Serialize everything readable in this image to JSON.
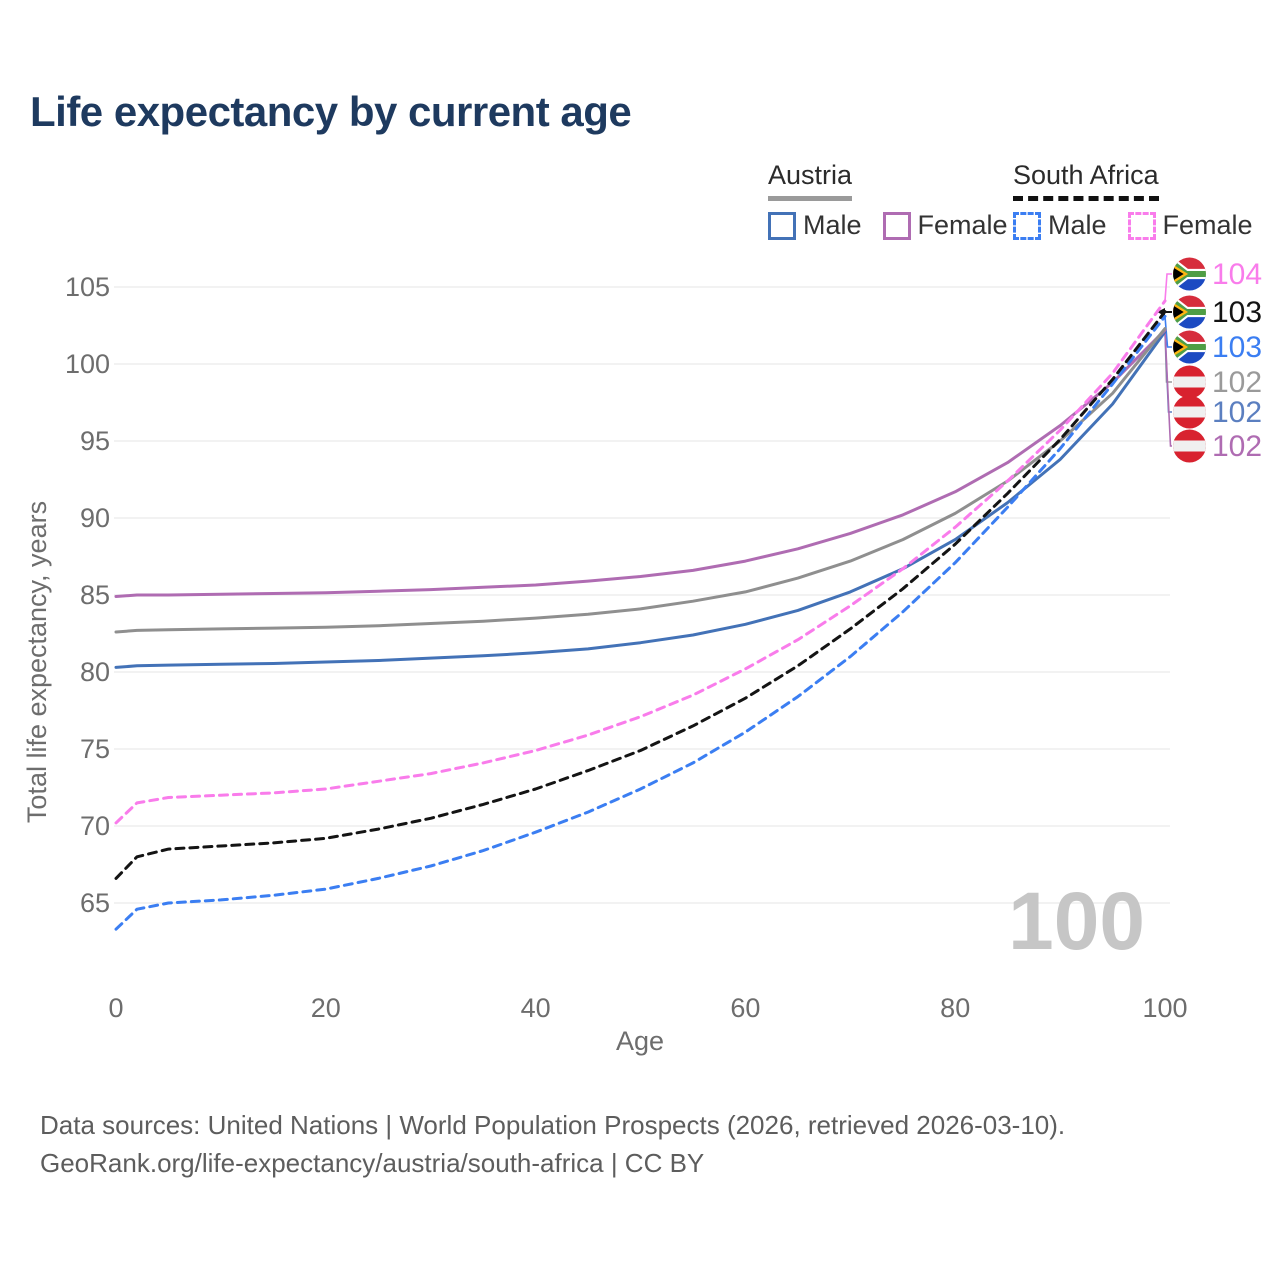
{
  "title": "Life expectancy by current age",
  "legend": {
    "groups": [
      {
        "country": "Austria",
        "line_style": "solid",
        "underline_color": "#9a9a9a",
        "items": [
          {
            "label": "Male",
            "color": "#4372b7",
            "dashed": false
          },
          {
            "label": "Female",
            "color": "#af6cb2",
            "dashed": false
          }
        ]
      },
      {
        "country": "South Africa",
        "line_style": "dashed",
        "underline_color": "#111111",
        "items": [
          {
            "label": "Male",
            "color": "#3b7ef2",
            "dashed": true
          },
          {
            "label": "Female",
            "color": "#f97ceb",
            "dashed": true
          }
        ]
      }
    ]
  },
  "chart_data": {
    "type": "line",
    "title": "Life expectancy by current age",
    "xlabel": "Age",
    "ylabel": "Total life expectancy, years",
    "x_ticks": [
      0,
      20,
      40,
      60,
      80,
      100
    ],
    "y_ticks": [
      65,
      70,
      75,
      80,
      85,
      90,
      95,
      100,
      105
    ],
    "xlim": [
      0,
      100
    ],
    "ylim": [
      63,
      106
    ],
    "grid": "horizontal",
    "legend_position": "top-right",
    "watermark": "100",
    "x": [
      0,
      2,
      5,
      10,
      15,
      20,
      25,
      30,
      35,
      40,
      45,
      50,
      55,
      60,
      65,
      70,
      75,
      80,
      85,
      90,
      95,
      100
    ],
    "series": [
      {
        "name": "Austria Male",
        "country": "Austria",
        "sex": "Male",
        "color": "#4372b7",
        "dashed": false,
        "values": [
          80.3,
          80.4,
          80.45,
          80.5,
          80.55,
          80.65,
          80.75,
          80.9,
          81.05,
          81.25,
          81.5,
          81.9,
          82.4,
          83.1,
          84.0,
          85.2,
          86.7,
          88.6,
          91.0,
          93.8,
          97.4,
          102.1
        ]
      },
      {
        "name": "Austria Female",
        "country": "Austria",
        "sex": "Female",
        "color": "#af6cb2",
        "dashed": false,
        "values": [
          84.9,
          85.0,
          85.0,
          85.05,
          85.1,
          85.15,
          85.25,
          85.35,
          85.5,
          85.65,
          85.9,
          86.2,
          86.6,
          87.2,
          88.0,
          89.0,
          90.2,
          91.7,
          93.6,
          96.0,
          98.8,
          102.2
        ]
      },
      {
        "name": "Austria Both sexes",
        "country": "Austria",
        "sex": "Both",
        "color": "#8f8f8f",
        "dashed": false,
        "values": [
          82.6,
          82.7,
          82.75,
          82.8,
          82.85,
          82.9,
          83.0,
          83.15,
          83.3,
          83.5,
          83.75,
          84.1,
          84.6,
          85.2,
          86.1,
          87.2,
          88.6,
          90.3,
          92.4,
          95.0,
          98.1,
          102.3
        ]
      },
      {
        "name": "South Africa Male",
        "country": "South Africa",
        "sex": "Male",
        "color": "#3b7ef2",
        "dashed": true,
        "values": [
          63.3,
          64.6,
          65.0,
          65.2,
          65.5,
          65.9,
          66.6,
          67.4,
          68.4,
          69.6,
          70.9,
          72.4,
          74.1,
          76.1,
          78.4,
          81.0,
          83.9,
          87.1,
          90.7,
          94.5,
          98.7,
          103.1
        ]
      },
      {
        "name": "South Africa Female",
        "country": "South Africa",
        "sex": "Female",
        "color": "#f97ceb",
        "dashed": true,
        "values": [
          70.2,
          71.5,
          71.85,
          72.0,
          72.15,
          72.4,
          72.9,
          73.4,
          74.1,
          74.9,
          75.9,
          77.1,
          78.5,
          80.2,
          82.1,
          84.3,
          86.7,
          89.4,
          92.4,
          95.7,
          99.4,
          104.1
        ]
      },
      {
        "name": "South Africa Both sexes",
        "country": "South Africa",
        "sex": "Both",
        "color": "#141414",
        "dashed": true,
        "values": [
          66.6,
          68.0,
          68.5,
          68.7,
          68.9,
          69.2,
          69.8,
          70.5,
          71.4,
          72.4,
          73.6,
          74.9,
          76.5,
          78.3,
          80.4,
          82.8,
          85.4,
          88.3,
          91.6,
          95.1,
          99.0,
          103.4
        ]
      }
    ],
    "end_labels": [
      {
        "value": "104",
        "series": "South Africa Female",
        "flag": "south-africa",
        "color": "#f97ceb"
      },
      {
        "value": "103",
        "series": "South Africa Both sexes",
        "flag": "south-africa",
        "color": "#141414"
      },
      {
        "value": "103",
        "series": "South Africa Male",
        "flag": "south-africa",
        "color": "#3b7ef2"
      },
      {
        "value": "102",
        "series": "Austria Both sexes",
        "flag": "austria",
        "color": "#9a9a9a"
      },
      {
        "value": "102",
        "series": "Austria Male",
        "flag": "austria",
        "color": "#5b7fc0"
      },
      {
        "value": "102",
        "series": "Austria Female",
        "flag": "austria",
        "color": "#af6cb2"
      }
    ]
  },
  "footer": {
    "line1": "Data sources: United Nations | World Population Prospects (2026, retrieved 2026-03-10).",
    "line2": "GeoRank.org/life-expectancy/austria/south-africa | CC BY"
  }
}
